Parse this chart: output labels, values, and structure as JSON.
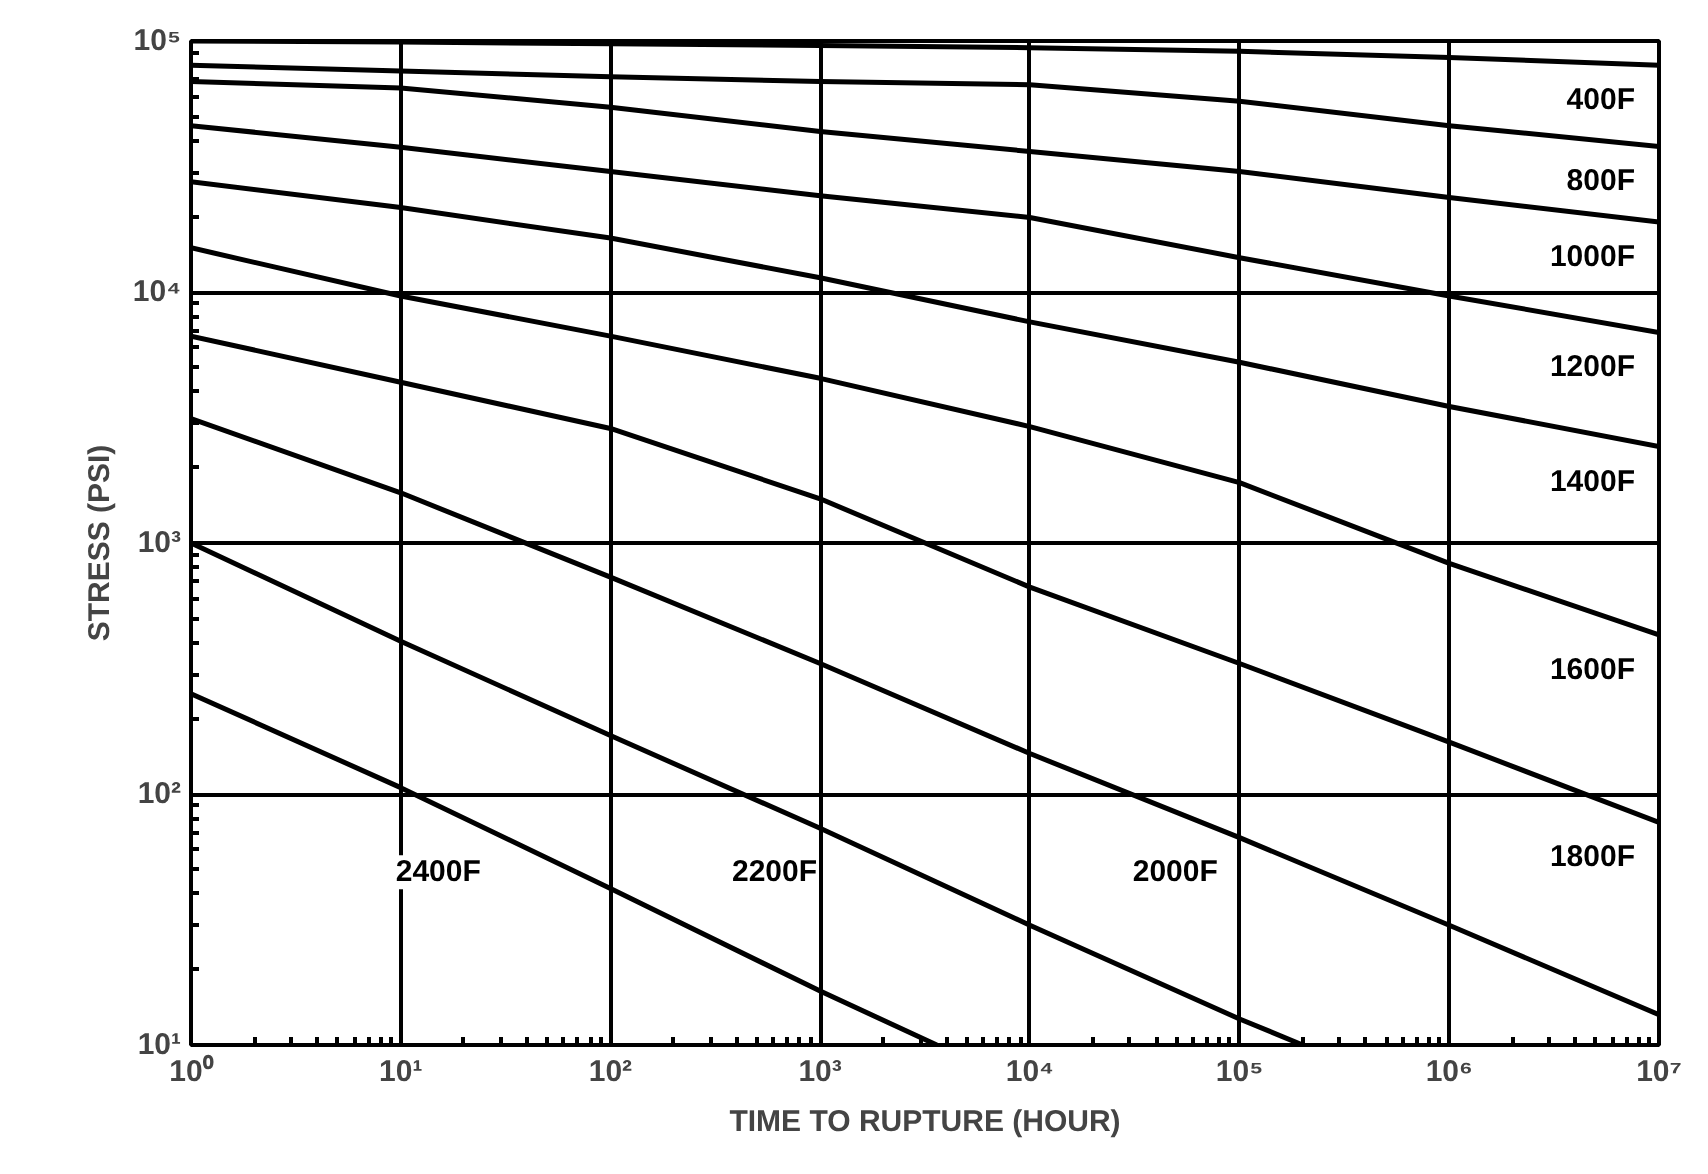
{
  "chart_data": {
    "type": "line",
    "xlabel": "TIME TO RUPTURE (HOUR)",
    "ylabel": "STRESS (PSI)",
    "log": "xy",
    "grid": true,
    "line_style": "solid",
    "marker": "none",
    "xlim": [
      1,
      10000000
    ],
    "ylim": [
      10,
      100000
    ],
    "xticks": [
      {
        "value": 1,
        "label": "10⁰"
      },
      {
        "value": 10,
        "label": "10¹"
      },
      {
        "value": 100,
        "label": "10²"
      },
      {
        "value": 1000,
        "label": "10³"
      },
      {
        "value": 10000,
        "label": "10⁴"
      },
      {
        "value": 100000,
        "label": "10⁵"
      },
      {
        "value": 1000000,
        "label": "10⁶"
      },
      {
        "value": 10000000,
        "label": "10⁷"
      }
    ],
    "yticks": [
      {
        "value": 10,
        "label": "10¹"
      },
      {
        "value": 100,
        "label": "10²"
      },
      {
        "value": 1000,
        "label": "10³"
      },
      {
        "value": 10000,
        "label": "10⁴"
      },
      {
        "value": 100000,
        "label": "10⁵"
      }
    ],
    "x": [
      1,
      10,
      100,
      1000,
      10000,
      100000,
      1000000,
      10000000
    ],
    "series": [
      {
        "name": "400F",
        "color": "#000000",
        "values": [
          100000,
          99000,
          97500,
          96000,
          94000,
          91000,
          86000,
          80000
        ]
      },
      {
        "name": "800F",
        "color": "#000000",
        "values": [
          80000,
          76000,
          72000,
          69000,
          67000,
          57500,
          46000,
          38000
        ]
      },
      {
        "name": "1000F",
        "color": "#000000",
        "values": [
          69000,
          65000,
          54500,
          43600,
          36300,
          30200,
          23800,
          19000
        ]
      },
      {
        "name": "1200F",
        "color": "#000000",
        "values": [
          46000,
          37700,
          30200,
          24200,
          19800,
          13700,
          9640,
          6900
        ]
      },
      {
        "name": "1400F",
        "color": "#000000",
        "values": [
          27500,
          21700,
          16400,
          11400,
          7600,
          5250,
          3500,
          2420
        ]
      },
      {
        "name": "1600F",
        "color": "#000000",
        "values": [
          15000,
          9640,
          6670,
          4530,
          2910,
          1740,
          830,
          430
        ]
      },
      {
        "name": "1800F",
        "color": "#000000",
        "values": [
          6670,
          4370,
          2860,
          1500,
          667,
          331,
          161,
          77
        ]
      },
      {
        "name": "2000F",
        "color": "#000000",
        "values": [
          3130,
          1585,
          731,
          331,
          145,
          67,
          30,
          13.2
        ]
      },
      {
        "name": "2200F",
        "color": "#000000",
        "x": [
          1,
          10,
          100,
          1000,
          10000,
          100000,
          200000
        ],
        "values": [
          1000,
          406,
          171,
          73,
          30,
          12.7,
          10
        ]
      },
      {
        "name": "2400F",
        "color": "#000000",
        "x": [
          1,
          10,
          100,
          1000,
          3600
        ],
        "values": [
          251,
          106,
          42,
          16.4,
          10
        ]
      }
    ]
  }
}
